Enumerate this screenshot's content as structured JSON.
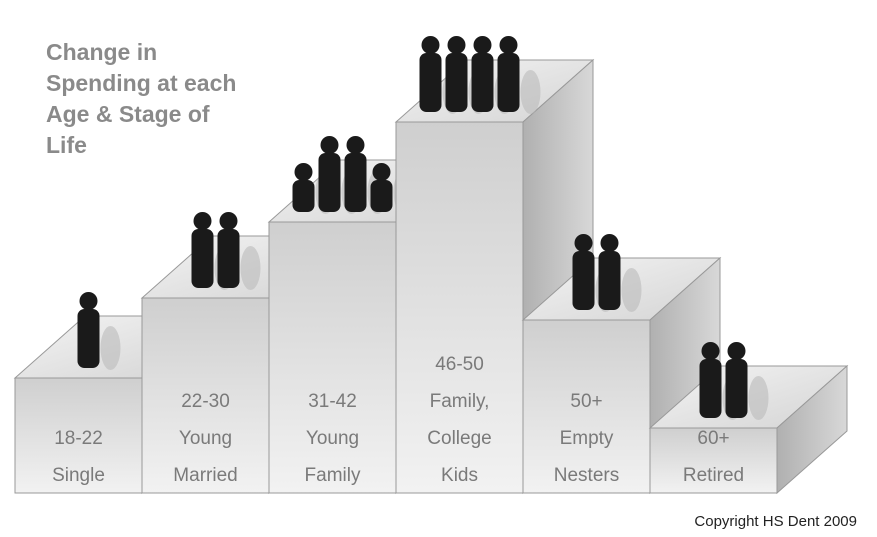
{
  "title_lines": [
    "Change in",
    "Spending at each",
    "Age & Stage of",
    "Life"
  ],
  "steps": [
    {
      "label_lines": [
        "18-22",
        "Single"
      ]
    },
    {
      "label_lines": [
        "22-30",
        "Young",
        "Married"
      ]
    },
    {
      "label_lines": [
        "31-42",
        "Young",
        "Family"
      ]
    },
    {
      "label_lines": [
        "46-50",
        "Family,",
        "College",
        "Kids"
      ]
    },
    {
      "label_lines": [
        "50+",
        "Empty",
        "Nesters"
      ]
    },
    {
      "label_lines": [
        "60+",
        "Retired"
      ]
    }
  ],
  "copyright": "Copyright HS Dent 2009"
}
